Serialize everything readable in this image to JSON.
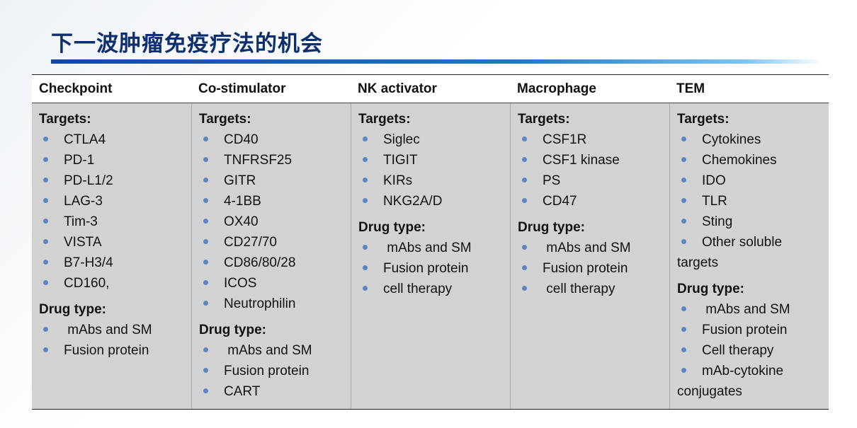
{
  "title": "下一波肿瘤免疫疗法的机会",
  "columns": [
    {
      "header": "Checkpoint",
      "targets_label": "Targets:",
      "targets": [
        "CTLA4",
        "PD-1",
        "PD-L1/2",
        "LAG-3",
        "Tim-3",
        "VISTA",
        "B7-H3/4",
        "CD160,"
      ],
      "drug_label": "Drug type:",
      "drugs": [
        " mAbs and SM",
        "Fusion protein"
      ]
    },
    {
      "header": "Co-stimulator",
      "targets_label": "Targets:",
      "targets": [
        "CD40",
        "TNFRSF25",
        "GITR",
        "4-1BB",
        "OX40",
        "CD27/70",
        "CD86/80/28",
        "ICOS",
        "Neutrophilin"
      ],
      "drug_label": "Drug type:",
      "drugs": [
        " mAbs and SM",
        "Fusion protein",
        "CART"
      ]
    },
    {
      "header": "NK activator",
      "targets_label": "Targets:",
      "targets": [
        "Siglec",
        "TIGIT",
        "KIRs",
        "NKG2A/D"
      ],
      "drug_label": "Drug type:",
      "drugs": [
        " mAbs and SM",
        "Fusion protein",
        "cell therapy"
      ]
    },
    {
      "header": "Macrophage",
      "targets_label": "Targets:",
      "targets": [
        "CSF1R",
        "CSF1 kinase",
        "PS",
        "CD47"
      ],
      "drug_label": "Drug type:",
      "drugs": [
        " mAbs and SM",
        "Fusion protein",
        " cell therapy"
      ]
    },
    {
      "header": "TEM",
      "targets_label": "Targets:",
      "targets": [
        "Cytokines",
        "Chemokines",
        "IDO",
        "TLR",
        "Sting",
        "Other soluble targets"
      ],
      "drug_label": "Drug type:",
      "drugs": [
        " mAbs and SM",
        "Fusion protein",
        "Cell therapy",
        "mAb-cytokine conjugates"
      ]
    }
  ]
}
